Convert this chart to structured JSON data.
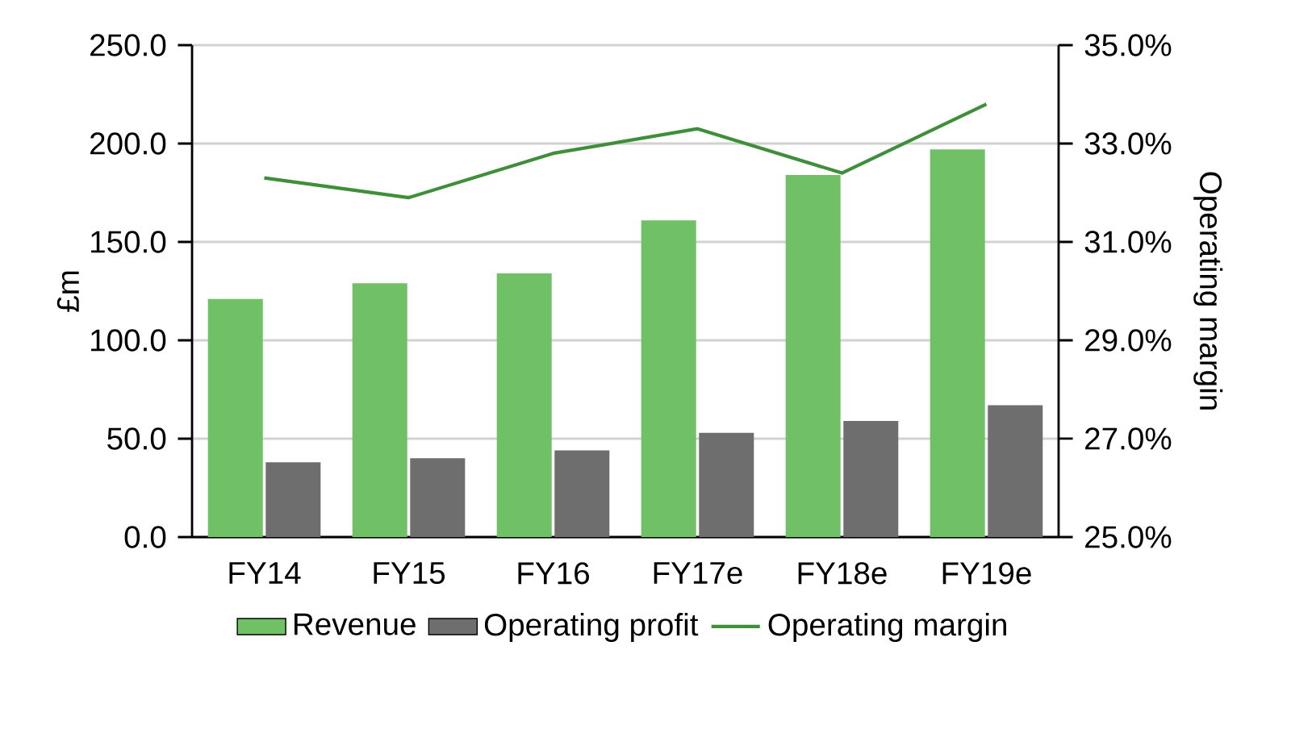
{
  "chart_data": {
    "type": "bar",
    "categories": [
      "FY14",
      "FY15",
      "FY16",
      "FY17e",
      "FY18e",
      "FY19e"
    ],
    "series": [
      {
        "name": "Revenue",
        "color": "#70c066",
        "values": [
          121,
          129,
          134,
          161,
          184,
          197
        ]
      },
      {
        "name": "Operating profit",
        "color": "#6e6e6e",
        "values": [
          38,
          40,
          44,
          53,
          59,
          67
        ]
      },
      {
        "name": "Operating margin",
        "color": "#3e8e3a",
        "type": "line",
        "axis": "y2",
        "values": [
          32.3,
          31.9,
          32.8,
          33.3,
          32.4,
          33.8
        ]
      }
    ],
    "ylabel": "£m",
    "y2label": "Operating margin",
    "ylim": [
      0,
      250
    ],
    "yticks": [
      {
        "value": 0,
        "label": "0.0"
      },
      {
        "value": 50,
        "label": "50.0"
      },
      {
        "value": 100,
        "label": "100.0"
      },
      {
        "value": 150,
        "label": "150.0"
      },
      {
        "value": 200,
        "label": "200.0"
      },
      {
        "value": 250,
        "label": "250.0"
      }
    ],
    "y2lim": [
      25,
      35
    ],
    "y2ticks": [
      {
        "value": 25,
        "label": "25.0%"
      },
      {
        "value": 27,
        "label": "27.0%"
      },
      {
        "value": 29,
        "label": "29.0%"
      },
      {
        "value": 31,
        "label": "31.0%"
      },
      {
        "value": 33,
        "label": "33.0%"
      },
      {
        "value": 35,
        "label": "35.0%"
      }
    ],
    "grid": "y",
    "legend": "bottom",
    "line_style": "solid",
    "marker": "none"
  }
}
